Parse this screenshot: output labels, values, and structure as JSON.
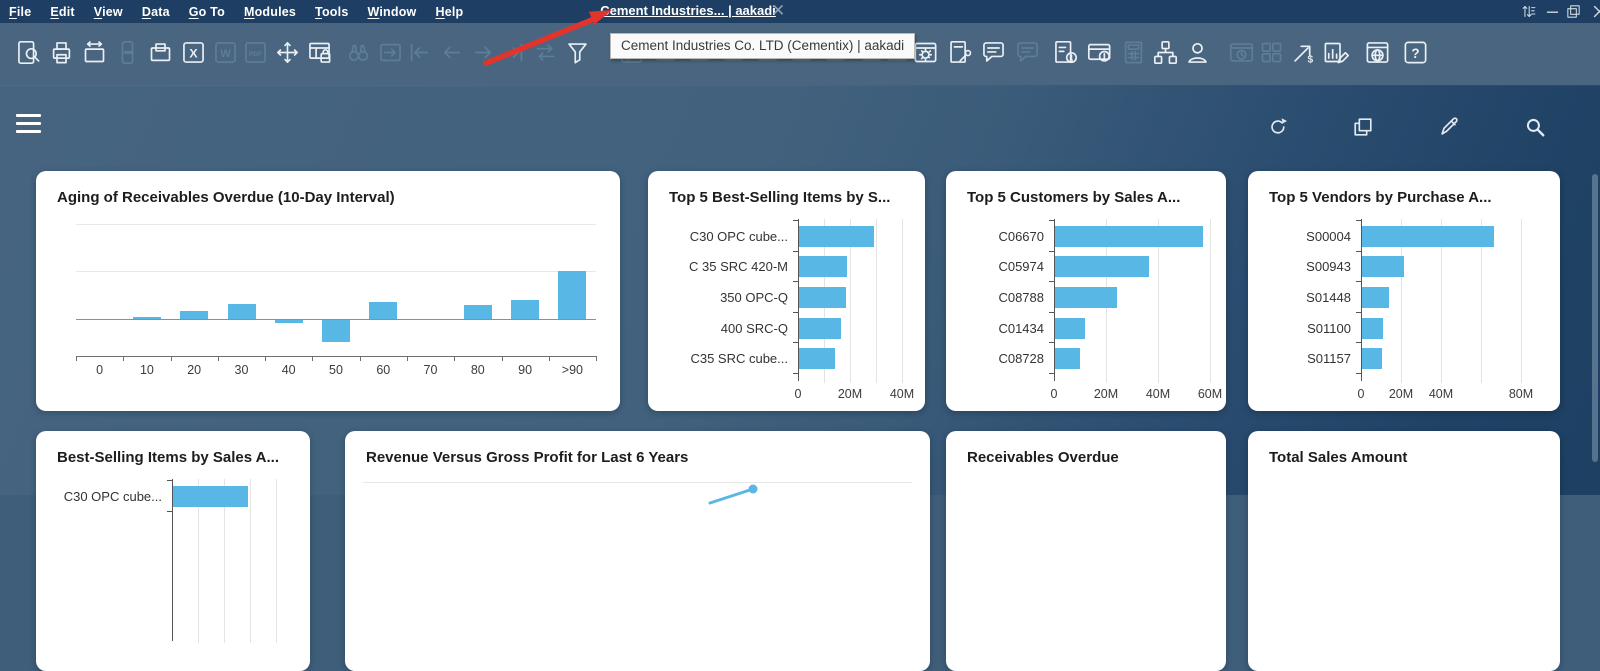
{
  "titlebar": {
    "app_title": "Cement Industries... | aakadi",
    "menus": [
      {
        "label": "File"
      },
      {
        "label": "Edit"
      },
      {
        "label": "View"
      },
      {
        "label": "Data"
      },
      {
        "label": "Go To"
      },
      {
        "label": "Modules"
      },
      {
        "label": "Tools"
      },
      {
        "label": "Window"
      },
      {
        "label": "Help"
      }
    ],
    "window_controls": [
      {
        "name": "adjust-columns"
      },
      {
        "name": "minimize"
      },
      {
        "name": "restore"
      },
      {
        "name": "close"
      }
    ]
  },
  "annotation": {
    "tooltip_text": "Cement Industries Co. LTD (Cementix) | aakadi"
  },
  "toolbar": {
    "icons": [
      {
        "name": "preview-find",
        "type": "docFind",
        "state": "bright"
      },
      {
        "name": "print",
        "type": "printer",
        "state": "bright"
      },
      {
        "name": "page-setup",
        "type": "calArrows",
        "state": "bright"
      },
      {
        "name": "mobile-message",
        "type": "phoneChat",
        "state": "dim"
      },
      {
        "name": "copy-tray",
        "type": "boxBox",
        "state": "bright"
      },
      {
        "name": "export-excel",
        "type": "letterX",
        "state": "bright"
      },
      {
        "name": "export-word",
        "type": "letterW",
        "state": "dim"
      },
      {
        "name": "export-pdf",
        "type": "letterPDF",
        "state": "dim"
      },
      {
        "name": "move-pan",
        "type": "crossArrows",
        "state": "bright"
      },
      {
        "name": "lock-table",
        "type": "tableLock",
        "state": "bright"
      },
      {
        "name": "find",
        "type": "binoculars",
        "state": "dim"
      },
      {
        "name": "goto-record",
        "type": "arrowBox",
        "state": "dim"
      },
      {
        "name": "first-record",
        "type": "navFirst",
        "state": "dim"
      },
      {
        "name": "previous-record",
        "type": "navPrev",
        "state": "dim"
      },
      {
        "name": "next-record",
        "type": "navNext",
        "state": "dim"
      },
      {
        "name": "last-record",
        "type": "navLast",
        "state": "dim"
      },
      {
        "name": "refresh-swap",
        "type": "swap",
        "state": "dim"
      },
      {
        "name": "filter",
        "type": "funnel",
        "state": "bright"
      },
      {
        "name": "sort",
        "type": "sortAZ",
        "state": "dim"
      },
      {
        "name": "hidden-tool-1",
        "type": "generic",
        "state": "dim"
      },
      {
        "name": "hidden-tool-2",
        "type": "generic",
        "state": "dim"
      },
      {
        "name": "hidden-tool-3",
        "type": "generic",
        "state": "dim"
      },
      {
        "name": "hidden-tool-4",
        "type": "generic",
        "state": "dim"
      },
      {
        "name": "hidden-tool-5",
        "type": "generic",
        "state": "dim"
      },
      {
        "name": "hidden-tool-6",
        "type": "generic",
        "state": "dim"
      },
      {
        "name": "hidden-tool-7",
        "type": "generic",
        "state": "dim"
      },
      {
        "name": "edit-sign",
        "type": "pencilBox",
        "state": "dim"
      },
      {
        "name": "form-settings",
        "type": "gearWin",
        "state": "bright"
      },
      {
        "name": "document-settings",
        "type": "docWrench",
        "state": "bright"
      },
      {
        "name": "message",
        "type": "chat",
        "state": "bright"
      },
      {
        "name": "message-reply",
        "type": "chat",
        "state": "dim"
      },
      {
        "name": "approvals-alert",
        "type": "docAlert",
        "state": "bright"
      },
      {
        "name": "payment-alert",
        "type": "cardAlert",
        "state": "bright"
      },
      {
        "name": "calculator",
        "type": "calc",
        "state": "dim"
      },
      {
        "name": "org-chart",
        "type": "org",
        "state": "bright"
      },
      {
        "name": "user",
        "type": "person",
        "state": "bright"
      },
      {
        "name": "schedule",
        "type": "cardClock",
        "state": "dim"
      },
      {
        "name": "widgets",
        "type": "gridSq",
        "state": "dim"
      },
      {
        "name": "sales-analysis",
        "type": "arrowDollar",
        "state": "bright"
      },
      {
        "name": "report-designer",
        "type": "chartPencil",
        "state": "bright"
      },
      {
        "name": "web-client",
        "type": "globeWin",
        "state": "bright"
      },
      {
        "name": "help",
        "type": "question",
        "state": "bright"
      }
    ]
  },
  "dashboard": {
    "header_icons": [
      {
        "name": "refresh"
      },
      {
        "name": "open-dashboard"
      },
      {
        "name": "edit"
      },
      {
        "name": "search"
      }
    ]
  },
  "chart_data": [
    {
      "card": "aging-receivables",
      "type": "bar",
      "title": "Aging of Receivables Overdue (10-Day Interval)",
      "categories": [
        "0",
        "10",
        "20",
        "30",
        "40",
        "50",
        "60",
        "70",
        "80",
        "90",
        ">90"
      ],
      "values": [
        0,
        2,
        8,
        15,
        -3,
        -22,
        17,
        0,
        14,
        19,
        48
      ],
      "value_unit": "relative-height (y axis unlabeled)",
      "xlabel": "",
      "ylabel": ""
    },
    {
      "card": "top-best-selling-items",
      "type": "bar-horizontal",
      "title": "Top 5 Best-Selling Items by S...",
      "categories": [
        "C30 OPC cube...",
        "C 35 SRC 420-M",
        "350 OPC-Q",
        "400 SRC-Q",
        "C35 SRC cube..."
      ],
      "values": [
        29,
        18.5,
        18,
        16.3,
        14
      ],
      "value_unit": "M",
      "x_ticks": [
        {
          "v": 0,
          "label": "0"
        },
        {
          "v": 20,
          "label": "20M"
        },
        {
          "v": 40,
          "label": "40M"
        }
      ],
      "xmax": 45,
      "grid_step": 10
    },
    {
      "card": "top-customers",
      "type": "bar-horizontal",
      "title": "Top 5 Customers by Sales A...",
      "categories": [
        "C06670",
        "C05974",
        "C08788",
        "C01434",
        "C08728"
      ],
      "values": [
        57,
        36,
        24,
        11.5,
        9.5
      ],
      "value_unit": "M",
      "x_ticks": [
        {
          "v": 0,
          "label": "0"
        },
        {
          "v": 20,
          "label": "20M"
        },
        {
          "v": 40,
          "label": "40M"
        },
        {
          "v": 60,
          "label": "60M"
        }
      ],
      "xmax": 65,
      "grid_step": 20
    },
    {
      "card": "top-vendors",
      "type": "bar-horizontal",
      "title": "Top 5 Vendors by Purchase A...",
      "categories": [
        "S00004",
        "S00943",
        "S01448",
        "S01100",
        "S01157"
      ],
      "values": [
        66,
        21,
        13.5,
        10.5,
        10
      ],
      "value_unit": "M",
      "x_ticks": [
        {
          "v": 0,
          "label": "0"
        },
        {
          "v": 20,
          "label": "20M"
        },
        {
          "v": 40,
          "label": "40M"
        },
        {
          "v": 80,
          "label": "80M"
        }
      ],
      "xmax": 90,
      "grid_step": 20
    },
    {
      "card": "best-selling-items-sales",
      "type": "bar-horizontal",
      "title": "Best-Selling Items by Sales A...",
      "categories": [
        "C30 OPC cube..."
      ],
      "values": [
        29
      ],
      "value_unit": "M",
      "x_ticks": [],
      "xmax": 45,
      "grid_step": 10
    },
    {
      "card": "revenue-vs-gross-profit",
      "type": "line",
      "title": "Revenue Versus Gross Profit for Last 6 Years"
    },
    {
      "card": "receivables-overdue",
      "type": "kpi",
      "title": "Receivables Overdue"
    },
    {
      "card": "total-sales-amount",
      "type": "kpi",
      "title": "Total Sales Amount"
    }
  ],
  "colors": {
    "accent_bar": "#58B7E4",
    "titlebar_bg": "#1E3F63",
    "toolbar_bg": "#4A657F",
    "dashboard_bg_left": "#44627E",
    "dashboard_bg_right": "#1E4064",
    "card_bg": "#FFFFFF",
    "annotation_red": "#E3342C"
  }
}
